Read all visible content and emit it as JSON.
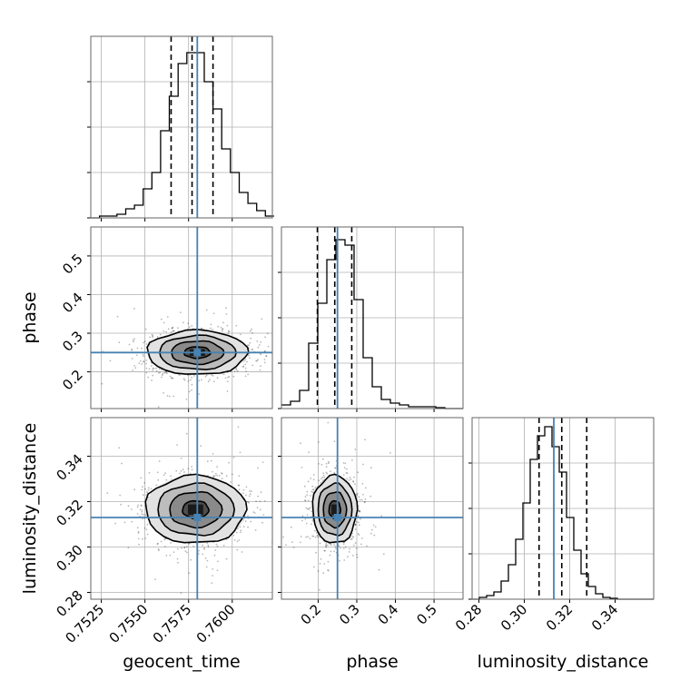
{
  "chart_data": {
    "type": "corner",
    "parameters": [
      "geocent_time",
      "phase",
      "luminosity_distance"
    ],
    "truths": {
      "geocent_time": 0.758,
      "phase": 0.25,
      "luminosity_distance": 0.313
    },
    "quantiles": {
      "geocent_time": [
        0.7565,
        0.7577,
        0.7589
      ],
      "phase": [
        0.198,
        0.243,
        0.287
      ],
      "luminosity_distance": [
        0.3065,
        0.3165,
        0.3275
      ]
    },
    "axis_ranges": {
      "geocent_time": [
        0.7519,
        0.7623
      ],
      "phase": [
        0.105,
        0.575
      ],
      "luminosity_distance": [
        0.277,
        0.357
      ]
    },
    "ticks": {
      "geocent_time": [
        {
          "v": 0.7525,
          "label": "0.7525"
        },
        {
          "v": 0.755,
          "label": "0.7550"
        },
        {
          "v": 0.7575,
          "label": "0.7575"
        },
        {
          "v": 0.76,
          "label": "0.7600"
        }
      ],
      "phase": [
        {
          "v": 0.2,
          "label": "0.2"
        },
        {
          "v": 0.3,
          "label": "0.3"
        },
        {
          "v": 0.4,
          "label": "0.4"
        },
        {
          "v": 0.5,
          "label": "0.5"
        }
      ],
      "luminosity_distance": [
        {
          "v": 0.28,
          "label": "0.28"
        },
        {
          "v": 0.3,
          "label": "0.30"
        },
        {
          "v": 0.32,
          "label": "0.32"
        },
        {
          "v": 0.34,
          "label": "0.34"
        }
      ]
    },
    "hist_yticks": [
      0.25,
      0.5,
      0.75
    ],
    "histograms": {
      "geocent_time": {
        "edges_start": 0.7519,
        "bin_width": 0.0005,
        "counts": [
          0,
          0.01,
          0.01,
          0.02,
          0.05,
          0.07,
          0.16,
          0.25,
          0.48,
          0.67,
          0.85,
          0.91,
          0.91,
          0.75,
          0.6,
          0.38,
          0.25,
          0.14,
          0.08,
          0.04,
          0.01
        ]
      },
      "phase": {
        "edges_start": 0.105,
        "bin_width": 0.0235,
        "counts": [
          0.02,
          0.04,
          0.1,
          0.36,
          0.58,
          0.82,
          0.93,
          0.9,
          0.6,
          0.28,
          0.12,
          0.05,
          0.03,
          0.02,
          0.01,
          0.01,
          0.01,
          0.005,
          0,
          0
        ]
      },
      "luminosity_distance": {
        "edges_start": 0.277,
        "bin_width": 0.0032,
        "counts": [
          0,
          0.01,
          0.02,
          0.04,
          0.1,
          0.19,
          0.33,
          0.53,
          0.77,
          0.9,
          0.95,
          0.84,
          0.7,
          0.45,
          0.27,
          0.14,
          0.07,
          0.03,
          0.01,
          0.005,
          0,
          0,
          0,
          0,
          0
        ]
      }
    },
    "densities": [
      {
        "x": "geocent_time",
        "y": "phase",
        "center": [
          0.758,
          0.25
        ],
        "sigma": [
          0.00125,
          0.025
        ],
        "contour_levels_sigma": [
          0.6,
          1.2,
          1.75,
          2.3
        ]
      },
      {
        "x": "geocent_time",
        "y": "luminosity_distance",
        "center": [
          0.7579,
          0.3165
        ],
        "sigma": [
          0.00125,
          0.0065
        ],
        "contour_levels_sigma": [
          0.6,
          1.2,
          1.75,
          2.3
        ]
      },
      {
        "x": "phase",
        "y": "luminosity_distance",
        "center": [
          0.243,
          0.3165
        ],
        "sigma": [
          0.025,
          0.0065
        ],
        "contour_levels_sigma": [
          0.6,
          1.2,
          1.75,
          2.3
        ]
      }
    ],
    "colors": {
      "truth": "#4682b4",
      "hist": "#000000",
      "quantile": "#000000",
      "grid": "#b0b0b0"
    },
    "grid": true
  }
}
